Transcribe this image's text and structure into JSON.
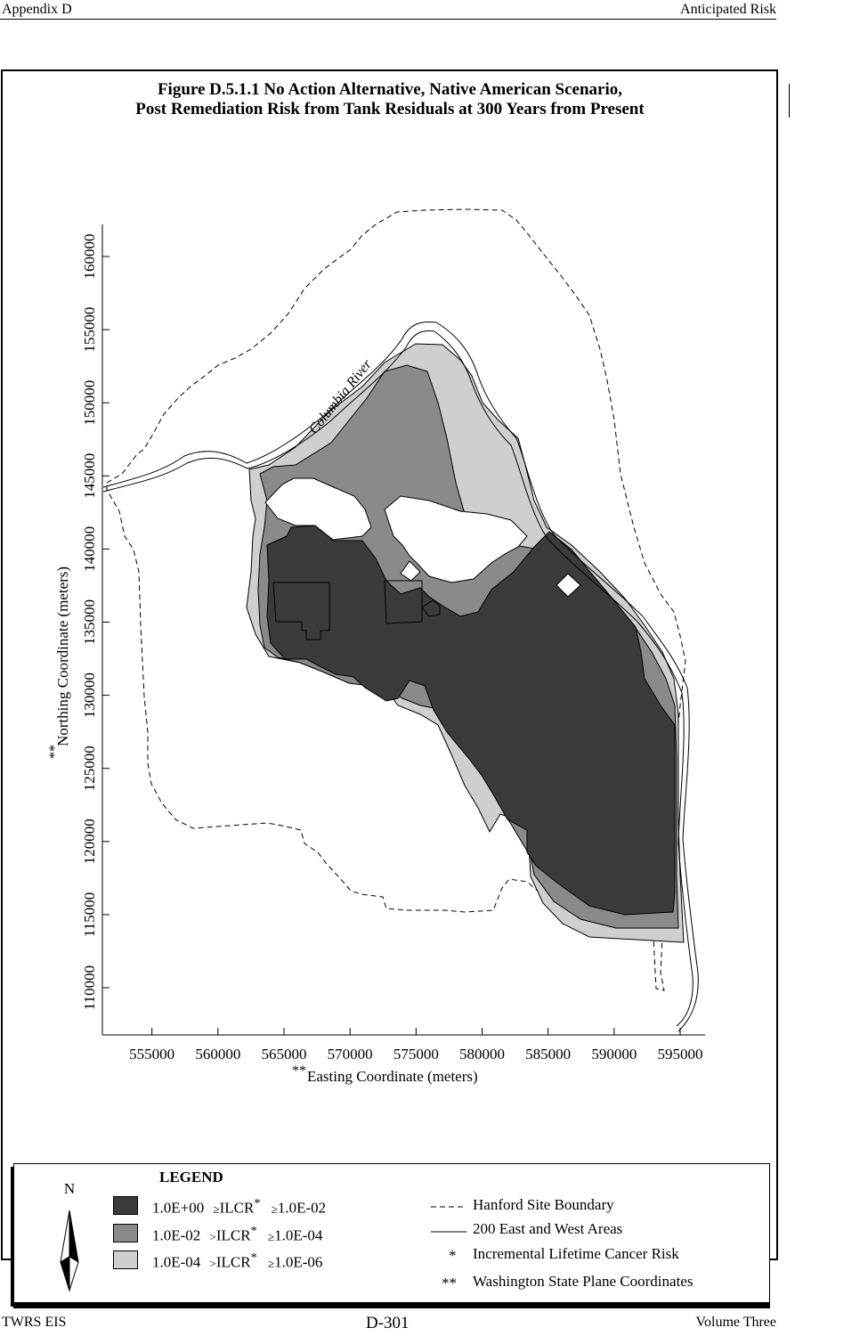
{
  "header": {
    "left": "Appendix D",
    "right": "Anticipated Risk"
  },
  "figure": {
    "title_line1": "Figure D.5.1.1  No Action Alternative, Native American Scenario,",
    "title_line2": "Post Remediation Risk from Tank Residuals at 300 Years from Present"
  },
  "map": {
    "river_label": "Columbia River",
    "x_axis_label_prefix": "**",
    "x_axis_label": "Easting Coordinate (meters)",
    "y_axis_label_prefix": "**",
    "y_axis_label": "Northing Coordinate (meters)",
    "x_ticks": [
      "555000",
      "560000",
      "565000",
      "570000",
      "575000",
      "580000",
      "585000",
      "590000",
      "595000"
    ],
    "y_ticks": [
      "160000",
      "155000",
      "150000",
      "145000",
      "140000",
      "135000",
      "130000",
      "125000",
      "120000",
      "115000",
      "110000"
    ],
    "colors": {
      "high": "#3b3b3b",
      "medium": "#8a8a8a",
      "low": "#cfcfcf"
    }
  },
  "legend": {
    "title": "LEGEND",
    "north_label": "N",
    "classes": [
      {
        "upper": "1.0E+00",
        "op1": "≥",
        "name": "ILCR",
        "star": "*",
        "op2": "≥",
        "lower": "1.0E-02",
        "color": "#3b3b3b"
      },
      {
        "upper": "1.0E-02",
        "op1": ">",
        "name": "ILCR",
        "star": "*",
        "op2": "≥",
        "lower": "1.0E-04",
        "color": "#8a8a8a"
      },
      {
        "upper": "1.0E-04",
        "op1": ">",
        "name": "ILCR",
        "star": "*",
        "op2": "≥",
        "lower": "1.0E-06",
        "color": "#cfcfcf"
      }
    ],
    "site_boundary": "Hanford Site Boundary",
    "areas": "200 East and West Areas",
    "ilcr_symbol": "*",
    "ilcr_note": "Incremental Lifetime Cancer Risk",
    "coord_symbol": "**",
    "coord_note": "Washington State Plane Coordinates"
  },
  "footer": {
    "left": "TWRS EIS",
    "center": "D-301",
    "right": "Volume Three"
  }
}
